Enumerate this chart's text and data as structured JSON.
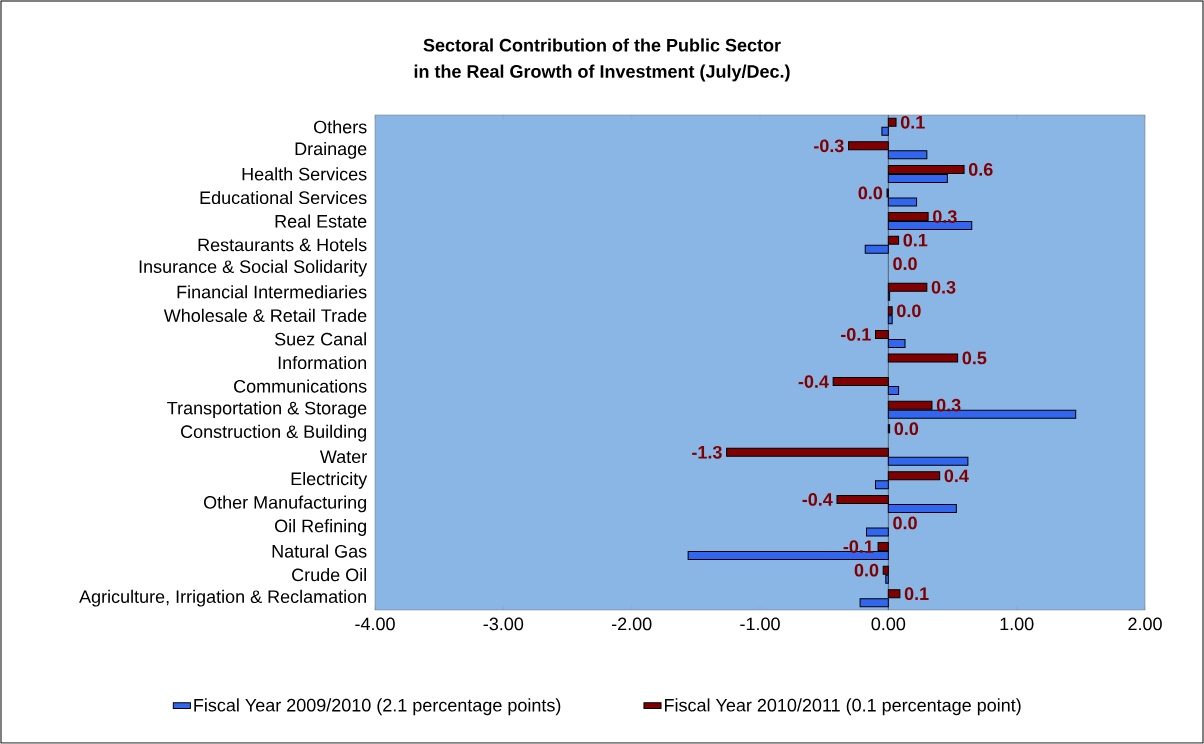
{
  "chart_data": {
    "type": "bar",
    "orientation": "horizontal",
    "title": "Sectoral Contribution of the Public Sector",
    "subtitle": "in the Real Growth of Investment (July/Dec.)",
    "categories": [
      "Others",
      "Drainage",
      "Health Services",
      "Educational Services",
      "Real Estate",
      "Restaurants & Hotels",
      "Insurance & Social Solidarity",
      "Financial Intermediaries",
      "Wholesale & Retail Trade",
      "Suez Canal",
      "Information",
      "Communications",
      "Transportation & Storage",
      "Construction & Building",
      "Water",
      "Electricity",
      "Other Manufacturing",
      "Oil Refining",
      "Natural Gas",
      "Crude Oil",
      "Agriculture, Irrigation & Reclamation"
    ],
    "series": [
      {
        "name": "Fiscal Year 2009/2010 (2.1 percentage points)",
        "color": "#3366ee",
        "values": [
          -0.05,
          0.3,
          0.46,
          0.22,
          0.65,
          -0.18,
          0,
          0.01,
          0.03,
          0.13,
          0,
          0.08,
          1.46,
          0,
          0.62,
          -0.1,
          0.53,
          -0.17,
          -1.56,
          -0.02,
          -0.22
        ]
      },
      {
        "name": "Fiscal Year 2010/2011 (0.1 percentage point)",
        "color": "#800000",
        "values": [
          0.06,
          -0.31,
          0.59,
          -0.01,
          0.31,
          0.08,
          0,
          0.3,
          0.03,
          -0.1,
          0.54,
          -0.43,
          0.34,
          0.01,
          -1.26,
          0.4,
          -0.4,
          0,
          -0.08,
          -0.04,
          0.09
        ],
        "value_labels": [
          "0.1",
          "-0.3",
          "0.6",
          "0.0",
          "0.3",
          "0.1",
          "0.0",
          "0.3",
          "0.0",
          "-0.1",
          "0.5",
          "-0.4",
          "0.3",
          "0.0",
          "-1.3",
          "0.4",
          "-0.4",
          "0.0",
          "-0.1",
          "0.0",
          "0.1"
        ]
      }
    ],
    "xlim": [
      -4,
      2
    ],
    "xticks": [
      {
        "value": -4,
        "label": "-4.00"
      },
      {
        "value": -3,
        "label": "-3.00"
      },
      {
        "value": -2,
        "label": "-2.00"
      },
      {
        "value": -1,
        "label": "-1.00"
      },
      {
        "value": 0,
        "label": "0.00"
      },
      {
        "value": 1,
        "label": "1.00"
      },
      {
        "value": 2,
        "label": "2.00"
      }
    ],
    "legend": "bottom"
  }
}
